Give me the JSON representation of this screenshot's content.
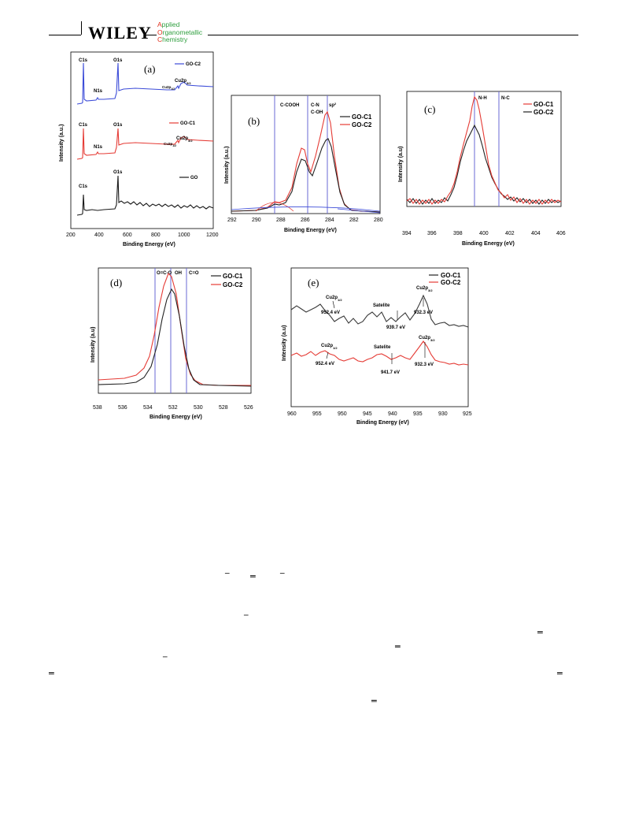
{
  "header": {
    "publisher": "WILEY",
    "journal_lines": [
      "Applied",
      "Organometallic",
      "Chemistry"
    ],
    "journal_first_letters": [
      "A",
      "O",
      "C"
    ]
  },
  "colors": {
    "c1": "#e53b35",
    "c2": "#3b4bd8",
    "go": "#1a1a1a",
    "vline": "#6a6ad6",
    "red": "#e53b35",
    "black": "#222222"
  },
  "figure": {
    "a": {
      "label": "(a)",
      "xlabel": "Binding Energy (eV)",
      "ylabel": "Intensity (a.u.)",
      "xticks": [
        "200",
        "400",
        "600",
        "800",
        "1000",
        "1200"
      ],
      "legend": [
        {
          "name": "GO-C2",
          "color": "#3b4bd8"
        },
        {
          "name": "GO-C1",
          "color": "#e53b35"
        },
        {
          "name": "GO",
          "color": "#1a1a1a"
        }
      ],
      "peak_labels": {
        "c1s": "C1s",
        "n1s": "N1s",
        "o1s": "O1s",
        "cu2p": "Cu2p",
        "cu2p_sub": "3/2",
        "cu2p1": "Cu2p",
        "cu2p1_sub": "1/2"
      }
    },
    "b": {
      "label": "(b)",
      "xlabel": "Binding Energy (eV)",
      "ylabel": "Intensity (a.u.)",
      "xticks": [
        "292",
        "290",
        "288",
        "286",
        "284",
        "282",
        "280"
      ],
      "annotations": [
        "C-COOH",
        "C-N",
        "C-OH",
        "sp"
      ],
      "sup": "2",
      "legend": [
        {
          "name": "GO-C1",
          "color": "#222222"
        },
        {
          "name": "GO-C2",
          "color": "#e53b35"
        }
      ]
    },
    "c": {
      "label": "(c)",
      "xlabel": "Binding Energy (eV)",
      "ylabel": "Intensity (a.u)",
      "xticks": [
        "394",
        "396",
        "398",
        "400",
        "402",
        "404",
        "406"
      ],
      "annotations": [
        "N-H",
        "N-C"
      ],
      "legend": [
        {
          "name": "GO-C1",
          "color": "#e53b35"
        },
        {
          "name": "GO-C2",
          "color": "#222222"
        }
      ]
    },
    "d": {
      "label": "(d)",
      "xlabel": "Binding Energy (eV)",
      "ylabel": "Intensity (a.u)",
      "xticks": [
        "538",
        "536",
        "534",
        "532",
        "530",
        "528",
        "526"
      ],
      "annotations": [
        "O=C-O",
        "OH",
        "C=O"
      ],
      "legend": [
        {
          "name": "GO-C1",
          "color": "#222222"
        },
        {
          "name": "GO-C2",
          "color": "#e53b35"
        }
      ]
    },
    "e": {
      "label": "(e)",
      "xlabel": "Binding Energy (eV)",
      "ylabel": "Intensity (a.u)",
      "xticks": [
        "960",
        "955",
        "950",
        "945",
        "940",
        "935",
        "930",
        "925"
      ],
      "legend": [
        {
          "name": "GO-C1",
          "color": "#222222"
        },
        {
          "name": "GO-C2",
          "color": "#e53b35"
        }
      ],
      "top": {
        "cu_left": "Cu2p",
        "cu_left_sub": "1/2",
        "cu_left_ev": "952.4 eV",
        "sat": "Satelite",
        "sat_ev": "939.7 eV",
        "cu_right": "Cu2p",
        "cu_right_sub": "3/2",
        "cu_right_ev": "932.3 eV"
      },
      "bottom": {
        "cu_left": "Cu2p",
        "cu_left_sub": "1/2",
        "cu_left_ev": "952.4 eV",
        "sat": "Satelite",
        "sat_ev": "941.7 eV",
        "cu_right": "Cu2p",
        "cu_right_sub": "3/2",
        "cu_right_ev": "932.3 eV"
      }
    }
  },
  "text_fragments": [
    "‾",
    "═",
    "‾",
    "‾",
    "═",
    "═",
    "‾",
    "═",
    "═",
    "═"
  ]
}
